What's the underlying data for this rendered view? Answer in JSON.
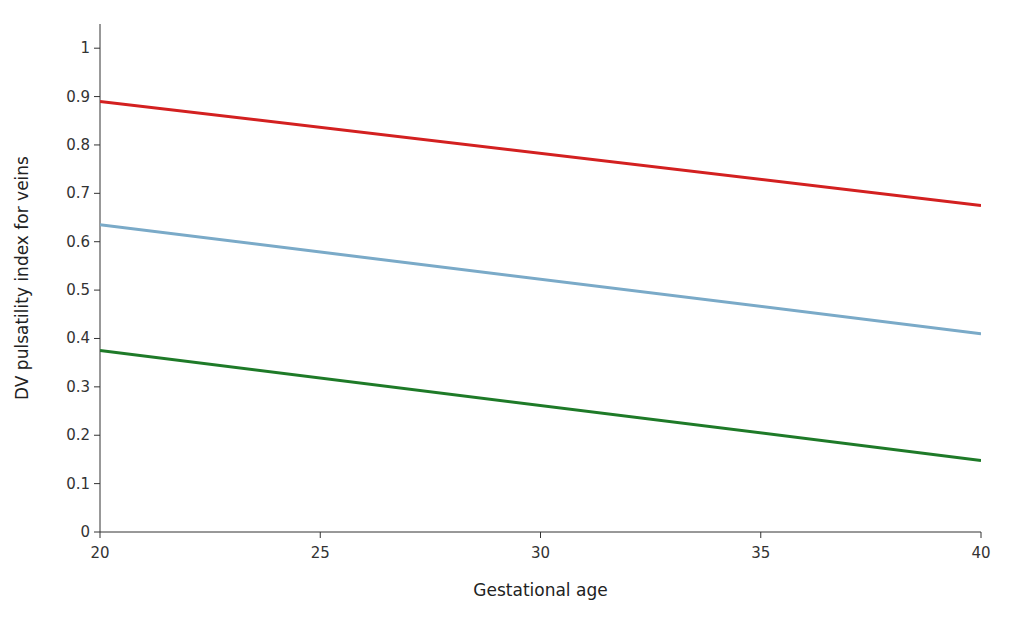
{
  "chart_data": {
    "type": "line",
    "x": [
      20,
      40
    ],
    "series": [
      {
        "color": "#d32020",
        "values": [
          0.89,
          0.675
        ]
      },
      {
        "color": "#7aaac8",
        "values": [
          0.635,
          0.41
        ]
      },
      {
        "color": "#1e7a28",
        "values": [
          0.375,
          0.148
        ]
      }
    ],
    "xlabel": "Gestational age",
    "ylabel": "DV pulsatility index for veins",
    "xlim": [
      20,
      40
    ],
    "ylim": [
      0,
      1.05
    ],
    "xticks": [
      20,
      25,
      30,
      35,
      40
    ],
    "yticks": [
      0,
      0.1,
      0.2,
      0.3,
      0.4,
      0.5,
      0.6,
      0.7,
      0.8,
      0.9,
      1.0
    ],
    "grid": false
  }
}
